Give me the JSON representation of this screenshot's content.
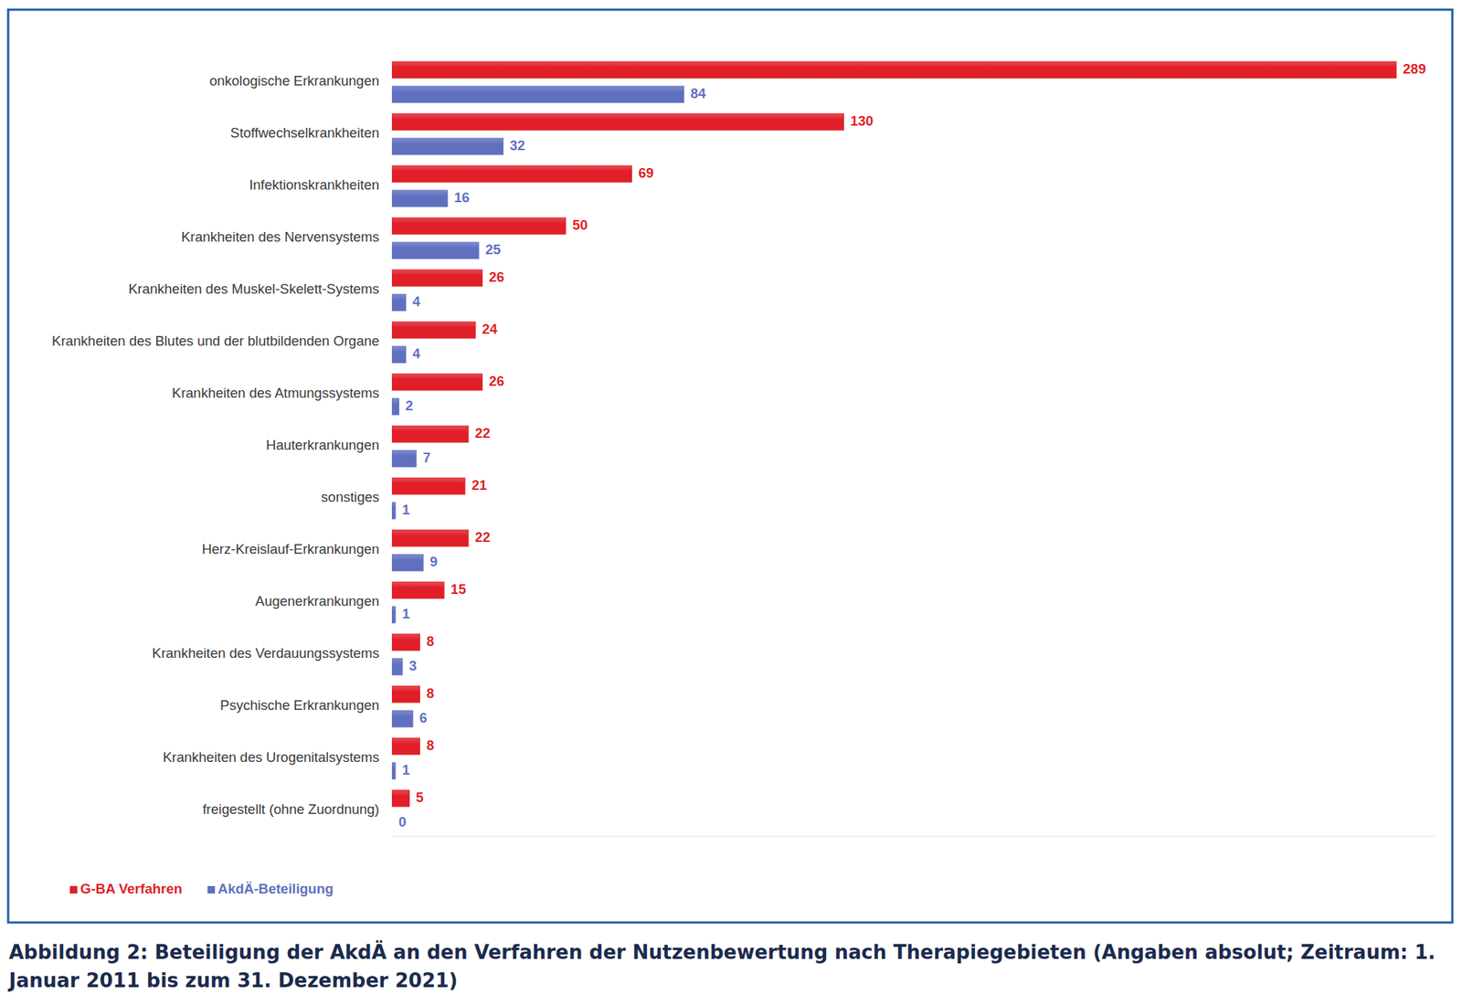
{
  "chart_data": {
    "type": "bar",
    "orientation": "horizontal",
    "title": "Abbildung 2: Beteiligung der AkdÄ an den Verfahren der Nutzenbewertung nach Therapiegebieten (Angaben absolut; Zeitraum: 1. Januar 2011 bis zum 31. Dezember 2021)",
    "categories": [
      "onkologische Erkrankungen",
      "Stoffwechselkrankheiten",
      "Infektionskrankheiten",
      "Krankheiten des Nervensystems",
      "Krankheiten des Muskel-Skelett-Systems",
      "Krankheiten des Blutes und der blutbildenden Organe",
      "Krankheiten des Atmungssystems",
      "Hauterkrankungen",
      "sonstiges",
      "Herz-Kreislauf-Erkrankungen",
      "Augenerkrankungen",
      "Krankheiten des Verdauungssystems",
      "Psychische Erkrankungen",
      "Krankheiten des Urogenitalsystems",
      "freigestellt (ohne Zuordnung)"
    ],
    "series": [
      {
        "name": "G-BA Verfahren",
        "color": "#e01f28",
        "values": [
          289,
          130,
          69,
          50,
          26,
          24,
          26,
          22,
          21,
          22,
          15,
          8,
          8,
          8,
          5
        ]
      },
      {
        "name": "AkdÄ-Beteiligung",
        "color": "#6070c0",
        "values": [
          84,
          32,
          16,
          25,
          4,
          4,
          2,
          7,
          1,
          9,
          1,
          3,
          6,
          1,
          0
        ]
      }
    ],
    "xlim": [
      0,
      300
    ],
    "tick_labels": false,
    "grid": false,
    "data_labels": true,
    "legend": "lower left"
  }
}
